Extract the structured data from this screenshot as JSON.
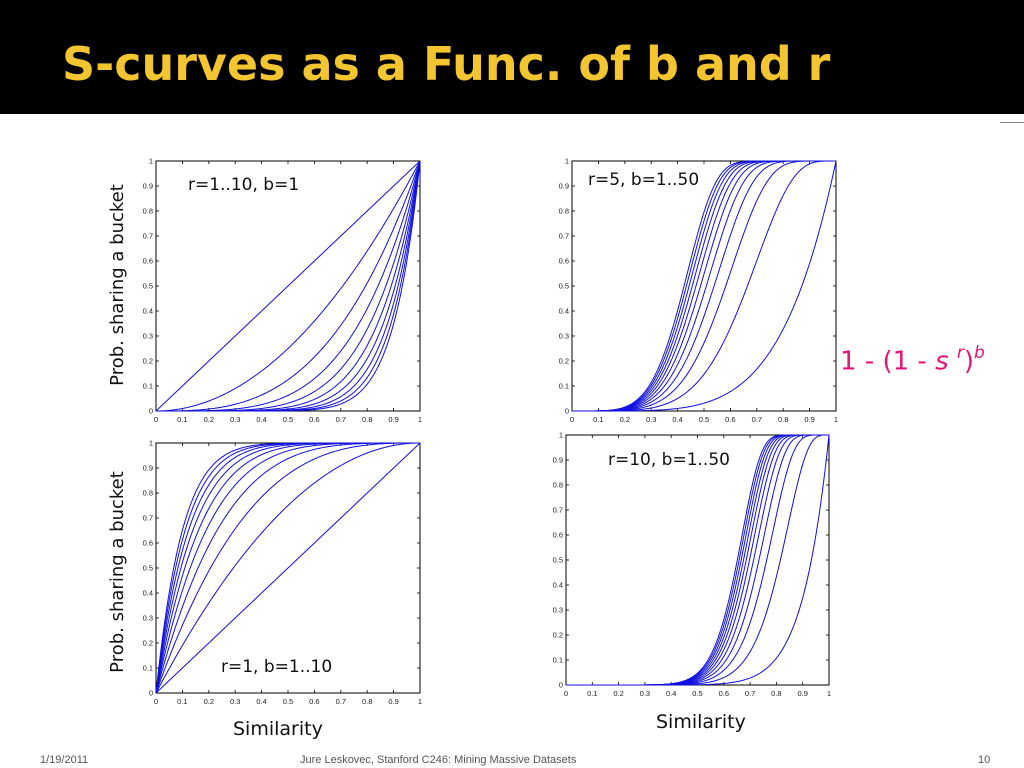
{
  "slide": {
    "title": "S-curves as a Func. of b and r",
    "formula": {
      "prefix": "1 - (1 - ",
      "s": "s",
      "r": "r",
      "close": ")",
      "b": "b"
    },
    "ylabel_top": "Prob. sharing a bucket",
    "ylabel_bottom": "Prob. sharing a bucket",
    "xlabel_left": "Similarity",
    "xlabel_right": "Similarity",
    "footer": {
      "date": "1/19/2011",
      "center": "Jure Leskovec, Stanford C246: Mining Massive Datasets",
      "page": "10"
    }
  },
  "chart_data": [
    {
      "type": "line",
      "annotation": "r=1..10, b=1",
      "function": "1-(1-s^r)^b",
      "r": [
        1,
        2,
        3,
        4,
        5,
        6,
        7,
        8,
        9,
        10
      ],
      "b": [
        1
      ],
      "xlim": [
        0,
        1
      ],
      "ylim": [
        0,
        1
      ],
      "xticks": [
        "0",
        "0.1",
        "0.2",
        "0.3",
        "0.4",
        "0.5",
        "0.6",
        "0.7",
        "0.8",
        "0.9",
        "1"
      ],
      "yticks": [
        "0",
        "0.1",
        "0.2",
        "0.3",
        "0.4",
        "0.5",
        "0.6",
        "0.7",
        "0.8",
        "0.9",
        "1"
      ],
      "line_color": "#1010e0",
      "grid": false
    },
    {
      "type": "line",
      "annotation": "r=5, b=1..50",
      "function": "1-(1-s^r)^b",
      "r": [
        5
      ],
      "b": [
        1,
        5,
        10,
        15,
        20,
        25,
        30,
        35,
        40,
        45,
        50
      ],
      "xlim": [
        0,
        1
      ],
      "ylim": [
        0,
        1
      ],
      "xticks": [
        "0",
        "0.1",
        "0.2",
        "0.3",
        "0.4",
        "0.5",
        "0.6",
        "0.7",
        "0.8",
        "0.9",
        "1"
      ],
      "yticks": [
        "0",
        "0.1",
        "0.2",
        "0.3",
        "0.4",
        "0.5",
        "0.6",
        "0.7",
        "0.8",
        "0.9",
        "1"
      ],
      "line_color": "#1010e0",
      "grid": false
    },
    {
      "type": "line",
      "annotation": "r=1, b=1..10",
      "function": "1-(1-s^r)^b",
      "r": [
        1
      ],
      "b": [
        1,
        2,
        3,
        4,
        5,
        6,
        7,
        8,
        9,
        10
      ],
      "xlim": [
        0,
        1
      ],
      "ylim": [
        0,
        1
      ],
      "xticks": [
        "0",
        "0.1",
        "0.2",
        "0.3",
        "0.4",
        "0.5",
        "0.6",
        "0.7",
        "0.8",
        "0.9",
        "1"
      ],
      "yticks": [
        "0",
        "0.1",
        "0.2",
        "0.3",
        "0.4",
        "0.5",
        "0.6",
        "0.7",
        "0.8",
        "0.9",
        "1"
      ],
      "line_color": "#1010e0",
      "grid": false
    },
    {
      "type": "line",
      "annotation": "r=10, b=1..50",
      "function": "1-(1-s^r)^b",
      "r": [
        10
      ],
      "b": [
        1,
        5,
        10,
        15,
        20,
        25,
        30,
        35,
        40,
        45,
        50
      ],
      "xlim": [
        0,
        1
      ],
      "ylim": [
        0,
        1
      ],
      "xticks": [
        "0",
        "0.1",
        "0.2",
        "0.3",
        "0.4",
        "0.5",
        "0.6",
        "0.7",
        "0.8",
        "0.9",
        "1"
      ],
      "yticks": [
        "0",
        "0.1",
        "0.2",
        "0.3",
        "0.4",
        "0.5",
        "0.6",
        "0.7",
        "0.8",
        "0.9",
        "1"
      ],
      "line_color": "#1010e0",
      "grid": false
    }
  ],
  "colors": {
    "title": "#f2c531",
    "title_bar": "#000000",
    "formula": "#e5147a",
    "curve": "#1010e0"
  }
}
